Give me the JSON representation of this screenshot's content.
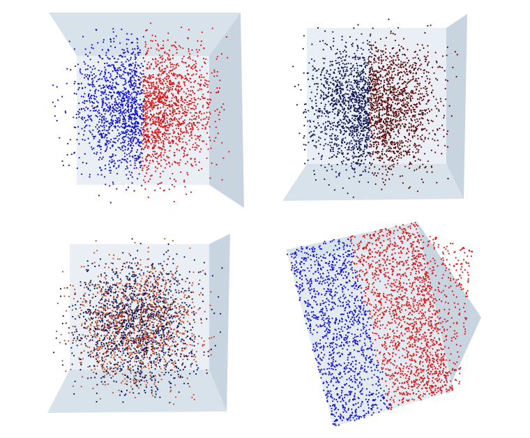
{
  "colors": {
    "background": "#ffffff",
    "wall_light": "#e9eff4",
    "wall_mid": "#d8e2eb",
    "wall_dark": "#c8d5e1",
    "blue": "#1515c8",
    "red": "#d81818",
    "navy": "#141a55",
    "dark_red": "#5a0c0c",
    "orange": "#c8502a"
  },
  "panels": [
    {
      "name": "top-left",
      "left_color": "blue",
      "right_color": "red",
      "mixed": false
    },
    {
      "name": "top-right",
      "left_color": "navy",
      "right_color": "dark_red",
      "mixed": false
    },
    {
      "name": "bottom-left",
      "left_color": "navy",
      "right_color": "orange",
      "mixed": true
    },
    {
      "name": "bottom-right",
      "left_color": "blue",
      "right_color": "red",
      "mixed": false
    }
  ]
}
